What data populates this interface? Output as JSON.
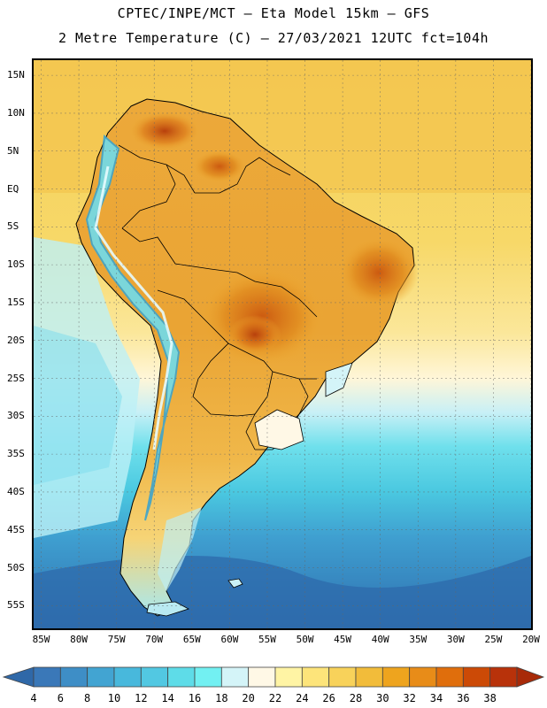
{
  "header": {
    "line1": "CPTEC/INPE/MCT –  Eta Model 15km – GFS",
    "line2": "2 Metre Temperature (C) – 27/03/2021 12UTC fct=104h"
  },
  "map": {
    "region": "South America",
    "lon_range": [
      -86,
      -20
    ],
    "lat_range": [
      -58,
      17
    ],
    "lat_labels": [
      {
        "lat": 15,
        "text": "15N"
      },
      {
        "lat": 10,
        "text": "10N"
      },
      {
        "lat": 5,
        "text": "5N"
      },
      {
        "lat": 0,
        "text": "EQ"
      },
      {
        "lat": -5,
        "text": "5S"
      },
      {
        "lat": -10,
        "text": "10S"
      },
      {
        "lat": -15,
        "text": "15S"
      },
      {
        "lat": -20,
        "text": "20S"
      },
      {
        "lat": -25,
        "text": "25S"
      },
      {
        "lat": -30,
        "text": "30S"
      },
      {
        "lat": -35,
        "text": "35S"
      },
      {
        "lat": -40,
        "text": "40S"
      },
      {
        "lat": -45,
        "text": "45S"
      },
      {
        "lat": -50,
        "text": "50S"
      },
      {
        "lat": -55,
        "text": "55S"
      }
    ],
    "lon_labels": [
      {
        "lon": -85,
        "text": "85W"
      },
      {
        "lon": -80,
        "text": "80W"
      },
      {
        "lon": -75,
        "text": "75W"
      },
      {
        "lon": -70,
        "text": "70W"
      },
      {
        "lon": -65,
        "text": "65W"
      },
      {
        "lon": -60,
        "text": "60W"
      },
      {
        "lon": -55,
        "text": "55W"
      },
      {
        "lon": -50,
        "text": "50W"
      },
      {
        "lon": -45,
        "text": "45W"
      },
      {
        "lon": -40,
        "text": "40W"
      },
      {
        "lon": -35,
        "text": "35W"
      },
      {
        "lon": -30,
        "text": "30W"
      },
      {
        "lon": -25,
        "text": "25W"
      },
      {
        "lon": -20,
        "text": "20W"
      }
    ]
  },
  "colorbar": {
    "labels": [
      "4",
      "6",
      "8",
      "10",
      "12",
      "14",
      "16",
      "18",
      "20",
      "22",
      "24",
      "26",
      "28",
      "30",
      "32",
      "34",
      "36",
      "38"
    ],
    "colors": [
      "#3a78b8",
      "#3e8ec6",
      "#42a4d2",
      "#48b8dc",
      "#52c8e2",
      "#5edce8",
      "#72f0f2",
      "#d4f4f8",
      "#fff8e6",
      "#fff4a4",
      "#fde47a",
      "#f8d25a",
      "#f2bc3a",
      "#eea41e",
      "#e88c18",
      "#e06e0c",
      "#cc4a06",
      "#b8320a"
    ]
  }
}
